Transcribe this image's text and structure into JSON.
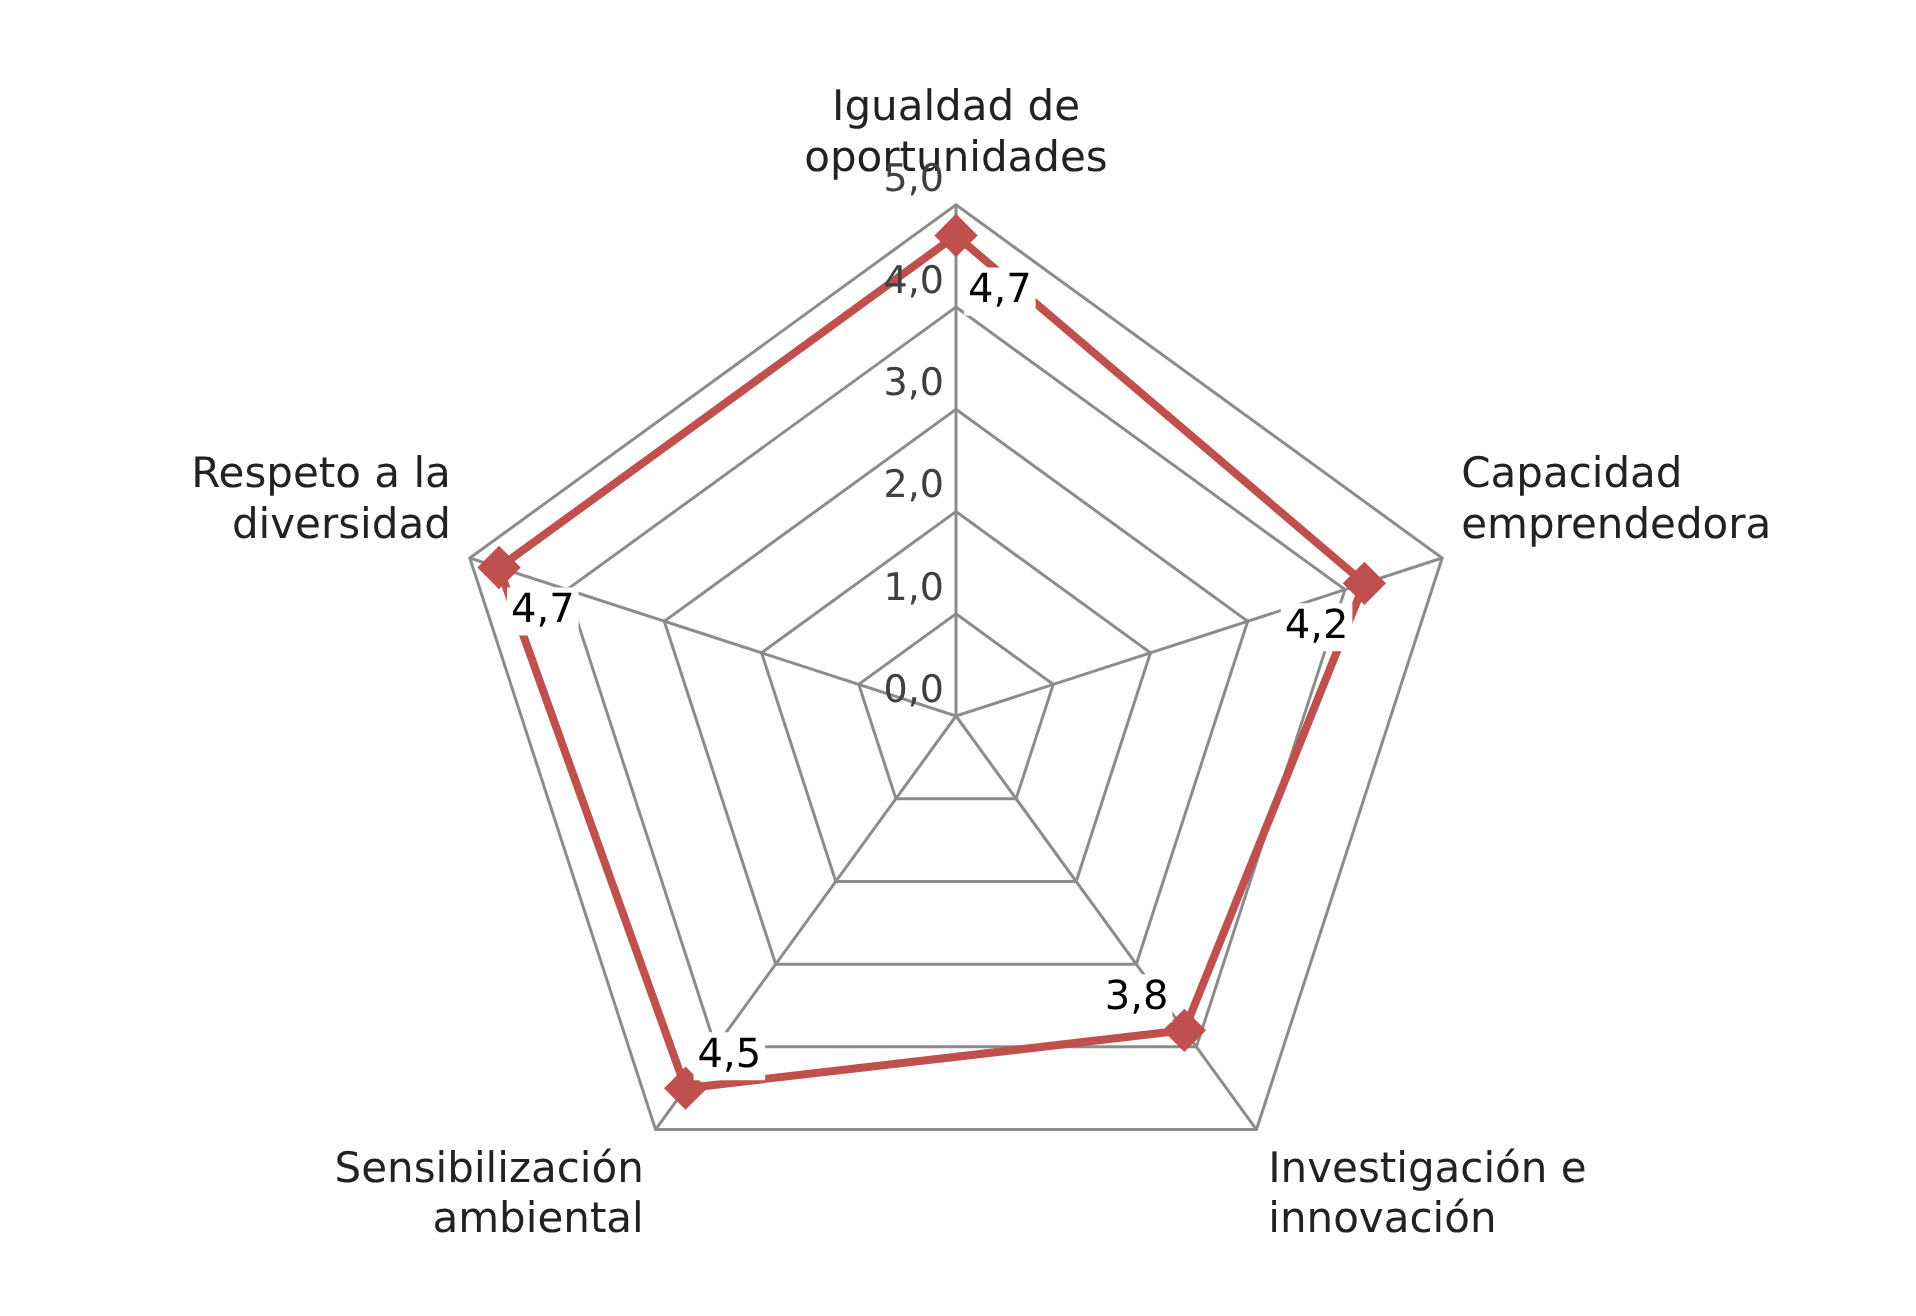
{
  "chart_data": {
    "type": "radar",
    "categories": [
      "Igualdad de oportunidades",
      "Capacidad emprendedora",
      "Investigación e innovación",
      "Sensibilización ambiental",
      "Respeto a la diversidad"
    ],
    "series": [
      {
        "color": "#c0504d",
        "values": [
          4.7,
          4.2,
          3.8,
          4.5,
          4.7
        ],
        "value_labels": [
          "4,7",
          "4,2",
          "3,8",
          "4,5",
          "4,7"
        ]
      }
    ],
    "ylim": [
      0,
      5
    ],
    "yticks": [
      {
        "value": 0,
        "label": "0,0"
      },
      {
        "value": 1,
        "label": "1,0"
      },
      {
        "value": 2,
        "label": "2,0"
      },
      {
        "value": 3,
        "label": "3,0"
      },
      {
        "value": 4,
        "label": "4,0"
      },
      {
        "value": 5,
        "label": "5,0"
      }
    ],
    "grid": true,
    "legend": false,
    "marker": "diamond",
    "line_style": "solid"
  }
}
